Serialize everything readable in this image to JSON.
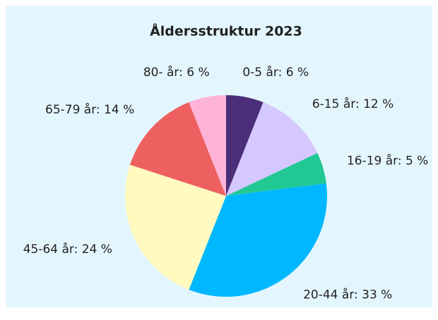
{
  "chart_data": {
    "type": "pie",
    "title": "Åldersstruktur 2023",
    "values": [
      6,
      12,
      5,
      33,
      24,
      14,
      6
    ],
    "value_labels": [
      "0-5 år: 6 %",
      "6-15 år: 12 %",
      "16-19 år: 5 %",
      "20-44 år: 33 %",
      "45-64 år: 24 %",
      "65-79 år: 14 %",
      "80- år: 6 %"
    ],
    "colors": [
      "#4b2e7a",
      "#d4c8ff",
      "#22c894",
      "#00b8ff",
      "#fffac0",
      "#ee6060",
      "#ffb3d9"
    ]
  }
}
